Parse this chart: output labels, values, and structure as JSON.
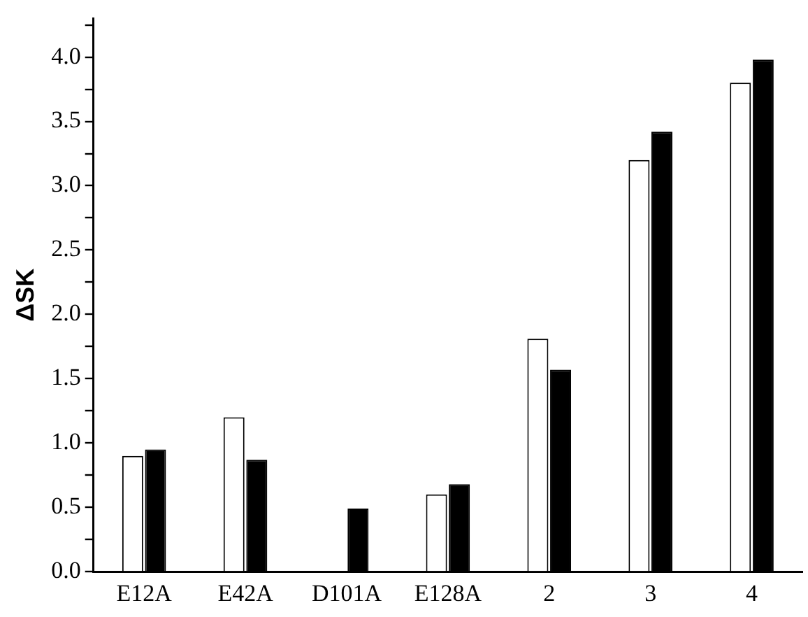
{
  "chart_data": {
    "type": "bar",
    "ylabel": "ΔSK",
    "categories": [
      "E12A",
      "E42A",
      "D101A",
      "E128A",
      "2",
      "3",
      "4"
    ],
    "series": [
      {
        "color": "#ffffff",
        "values": [
          0.9,
          1.2,
          null,
          0.6,
          1.81,
          3.2,
          3.8
        ]
      },
      {
        "color": "#000000",
        "values": [
          0.95,
          0.87,
          0.49,
          0.68,
          1.57,
          3.42,
          3.98
        ]
      }
    ],
    "ylim": [
      0,
      4.3
    ],
    "yticks": [
      {
        "value": 0,
        "label": "0.0"
      },
      {
        "value": 0.25,
        "label": null
      },
      0.5,
      {
        "value": 0.75,
        "label": null
      },
      {
        "value": 1,
        "label": "1.0"
      },
      {
        "value": 1.25,
        "label": null
      },
      1.5,
      {
        "value": 1.75,
        "label": null
      },
      {
        "value": 2,
        "label": "2.0"
      },
      {
        "value": 2.25,
        "label": null
      },
      2.5,
      {
        "value": 2.75,
        "label": null
      },
      {
        "value": 3,
        "label": "3.0"
      },
      {
        "value": 3.25,
        "label": null
      },
      3.5,
      {
        "value": 3.75,
        "label": null
      },
      {
        "value": 4,
        "label": "4.0"
      },
      {
        "value": 4.25,
        "label": null
      }
    ],
    "grid": false,
    "legend": false
  }
}
